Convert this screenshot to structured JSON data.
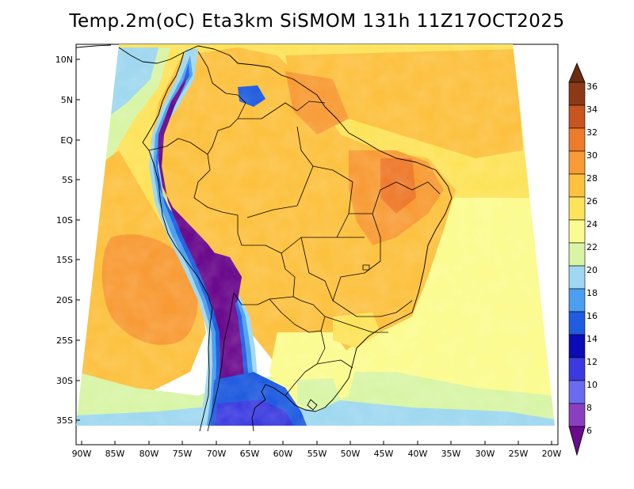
{
  "title": "Temp.2m(oC) Eta3km SiSMOM 131h 11Z17OCT2025",
  "latitude_labels": [
    "10N",
    "5N",
    "EQ",
    "5S",
    "10S",
    "15S",
    "20S",
    "25S",
    "30S",
    "35S"
  ],
  "longitude_labels": [
    "90W",
    "85W",
    "80W",
    "75W",
    "70W",
    "65W",
    "60W",
    "55W",
    "50W",
    "45W",
    "40W",
    "35W",
    "30W",
    "25W",
    "20W"
  ],
  "colorbar": {
    "labels": [
      "6",
      "8",
      "10",
      "12",
      "14",
      "16",
      "18",
      "20",
      "22",
      "24",
      "26",
      "28",
      "30",
      "32",
      "34",
      "36"
    ],
    "colors": [
      "#6a0a8c",
      "#8a3fc0",
      "#6b6bf2",
      "#3a3ae0",
      "#0b0bb8",
      "#1f5cdf",
      "#4a9ff0",
      "#9fd8f0",
      "#d8f5a6",
      "#fbfb8f",
      "#fde35a",
      "#fcc13f",
      "#f89b35",
      "#ee7a2c",
      "#c85420",
      "#8c3a16",
      "#6b2c10"
    ]
  }
}
